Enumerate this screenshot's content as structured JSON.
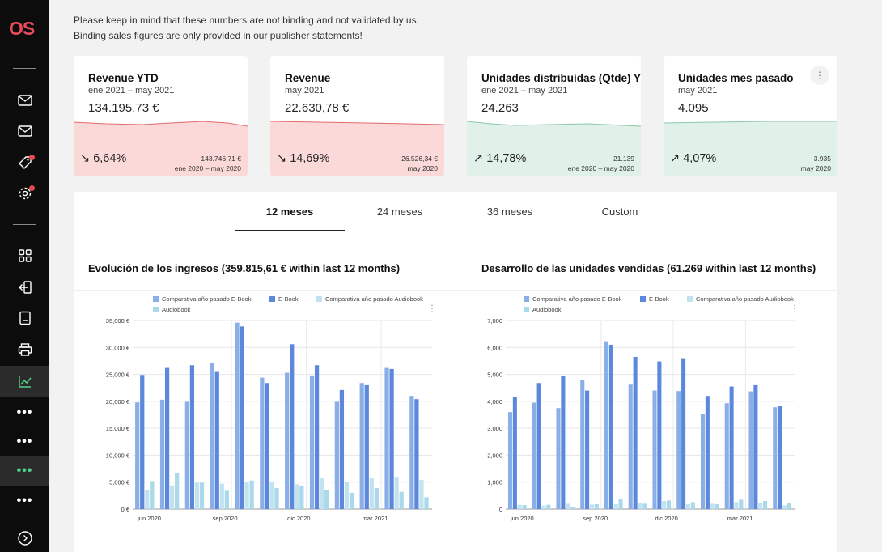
{
  "logo": {
    "text_o": "O",
    "text_s": "S"
  },
  "notice": {
    "line1": "Please keep in mind that these numbers are not binding and not validated by us.",
    "line2": "Binding sales figures are only provided in our publisher statements!"
  },
  "kpis": [
    {
      "title": "Revenue YTD",
      "period": "ene 2021 – may 2021",
      "value": "134.195,73 €",
      "direction": "down",
      "pct": "6,64%",
      "cmp_value": "143.746,71 €",
      "cmp_period": "ene 2020 – may 2020",
      "color": "#fbd9d9",
      "line_color": "#e46a6a"
    },
    {
      "title": "Revenue",
      "period": "may 2021",
      "value": "22.630,78 €",
      "direction": "down",
      "pct": "14,69%",
      "cmp_value": "26.526,34 €",
      "cmp_period": "may 2020",
      "color": "#fbd9d9",
      "line_color": "#e46a6a"
    },
    {
      "title": "Unidades distribuídas (Qtde) YTD",
      "period": "ene 2021 – may 2021",
      "value": "24.263",
      "direction": "up",
      "pct": "14,78%",
      "cmp_value": "21.139",
      "cmp_period": "ene 2020 – may 2020",
      "color": "#dff1e8",
      "line_color": "#8cc8a8"
    },
    {
      "title": "Unidades mes pasado",
      "period": "may 2021",
      "value": "4.095",
      "direction": "up",
      "pct": "4,07%",
      "cmp_value": "3.935",
      "cmp_period": "may 2020",
      "color": "#dff1e8",
      "line_color": "#8cc8a8"
    }
  ],
  "kpi_menu_icon": "more-vertical-icon",
  "tabs": [
    "12 meses",
    "24 meses",
    "36 meses",
    "Custom"
  ],
  "active_tab": "12 meses",
  "colors": {
    "ebook_prev": "#8aaee8",
    "ebook": "#5b87dc",
    "audio_prev": "#c3e2ef",
    "audio": "#a9d9ea"
  },
  "sidebar": {
    "icons": [
      "mail-icon",
      "mail-icon",
      "tag-icon",
      "settings-icon",
      "grid-icon",
      "import-icon",
      "document-icon",
      "print-icon",
      "chart-icon",
      "more-icon",
      "more-icon",
      "more-icon",
      "more-icon",
      "expand-icon"
    ],
    "more_label": "•••",
    "badges_color": "#e5484d"
  },
  "charts": {
    "revenue": {
      "title": "Evolución de los ingresos",
      "subtitle": "(359.815,61 € within last 12 months)"
    },
    "units": {
      "title": "Desarrollo de las unidades vendidas",
      "subtitle": "(61.269 within last 12 months)"
    }
  },
  "chart_data": [
    {
      "type": "bar",
      "title": "Evolución de los ingresos (359.815,61 € within last 12 months)",
      "xlabel": "",
      "ylabel": "",
      "categories": [
        "jun 2020",
        "jul 2020",
        "ago 2020",
        "sep 2020",
        "oct 2020",
        "nov 2020",
        "dic 2020",
        "ene 2021",
        "feb 2021",
        "mar 2021",
        "abr 2021",
        "may 2021"
      ],
      "x_tick_labels": [
        "jun 2020",
        "sep 2020",
        "dic 2020",
        "mar 2021"
      ],
      "y_tick_labels": [
        "0 €",
        "5,000 €",
        "10,000 €",
        "15,000 €",
        "20,000 €",
        "25,000 €",
        "30,000 €",
        "35,000 €"
      ],
      "ylim": [
        0,
        35000
      ],
      "legend": [
        "Comparativa año pasado E-Book",
        "E-Book",
        "Comparativa año pasado Audiobook",
        "Audiobook"
      ],
      "legend_position": "top",
      "grid": true,
      "series": [
        {
          "name": "Comparativa año pasado E-Book",
          "values": [
            19800,
            20300,
            19900,
            27200,
            34600,
            24400,
            25300,
            24800,
            19900,
            23400,
            26200,
            21000
          ]
        },
        {
          "name": "E-Book",
          "values": [
            24900,
            26200,
            26700,
            25600,
            33900,
            23400,
            30600,
            26700,
            22100,
            23000,
            26000,
            20400
          ]
        },
        {
          "name": "Comparativa año pasado Audiobook",
          "values": [
            3500,
            4400,
            4900,
            4700,
            5100,
            5000,
            4600,
            5800,
            5000,
            5700,
            6000,
            5400
          ]
        },
        {
          "name": "Audiobook",
          "values": [
            5200,
            6600,
            4900,
            3400,
            5300,
            3900,
            4300,
            3600,
            3000,
            3900,
            3200,
            2200
          ]
        }
      ]
    },
    {
      "type": "bar",
      "title": "Desarrollo de las unidades vendidas (61.269 within last 12 months)",
      "xlabel": "",
      "ylabel": "",
      "categories": [
        "jun 2020",
        "jul 2020",
        "ago 2020",
        "sep 2020",
        "oct 2020",
        "nov 2020",
        "dic 2020",
        "ene 2021",
        "feb 2021",
        "mar 2021",
        "abr 2021",
        "may 2021"
      ],
      "x_tick_labels": [
        "jun 2020",
        "sep 2020",
        "dic 2020",
        "mar 2021"
      ],
      "y_tick_labels": [
        "0",
        "1,000",
        "2,000",
        "3,000",
        "4,000",
        "5,000",
        "6,000",
        "7,000"
      ],
      "ylim": [
        0,
        7000
      ],
      "legend": [
        "Comparativa año pasado E-Book",
        "E-Book",
        "Comparativa año pasado Audiobook",
        "Audiobook"
      ],
      "legend_position": "top",
      "grid": true,
      "series": [
        {
          "name": "Comparativa año pasado E-Book",
          "values": [
            3600,
            3950,
            3750,
            4780,
            6230,
            4620,
            4400,
            4380,
            3520,
            3930,
            4370,
            3780
          ]
        },
        {
          "name": "E-Book",
          "values": [
            4170,
            4680,
            4950,
            4400,
            6100,
            5650,
            5480,
            5600,
            4200,
            4550,
            4600,
            3830
          ]
        },
        {
          "name": "Comparativa año pasado Audiobook",
          "values": [
            160,
            130,
            200,
            170,
            180,
            230,
            300,
            180,
            200,
            260,
            230,
            140
          ]
        },
        {
          "name": "Audiobook",
          "values": [
            150,
            160,
            90,
            180,
            380,
            200,
            320,
            260,
            180,
            350,
            300,
            230
          ]
        }
      ]
    }
  ]
}
